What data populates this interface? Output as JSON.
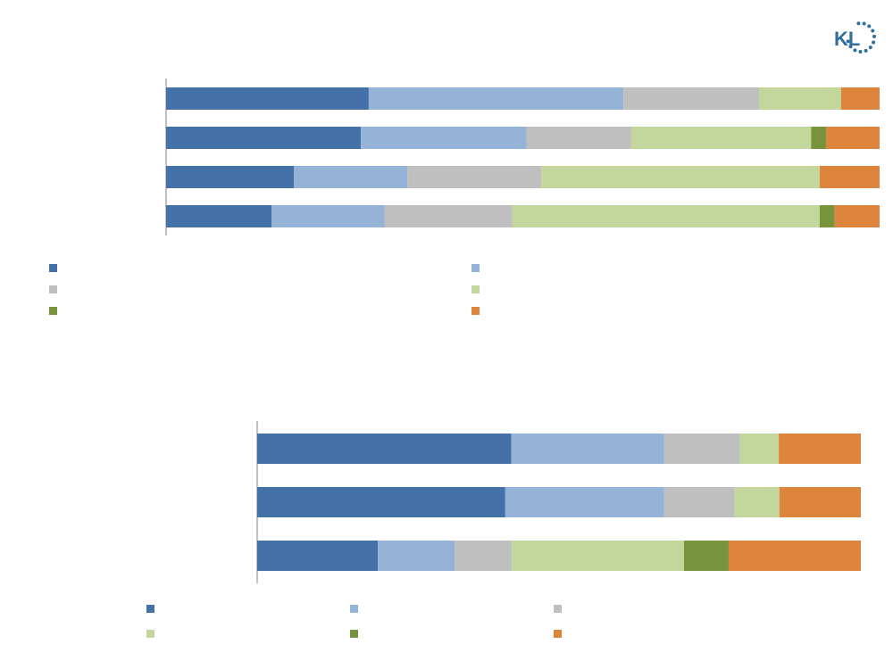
{
  "logo": {
    "text": "KL",
    "color": "#2e6f9e"
  },
  "colors": [
    "#4472a8",
    "#95b3d7",
    "#bfbfbf",
    "#c3d69b",
    "#77933c",
    "#dd843d"
  ],
  "chart_data": [
    {
      "type": "bar",
      "orientation": "horizontal",
      "stacked": true,
      "normalized": true,
      "title": "",
      "xlabel": "",
      "ylabel": "",
      "categories": [
        "",
        "",
        "",
        ""
      ],
      "series": [
        {
          "values": [
            28.4,
            27.3,
            17.9,
            14.8
          ]
        },
        {
          "values": [
            35.7,
            23.2,
            15.9,
            15.8
          ]
        },
        {
          "values": [
            19.0,
            14.7,
            18.8,
            17.9
          ]
        },
        {
          "values": [
            11.5,
            25.2,
            39.0,
            43.1
          ]
        },
        {
          "values": [
            0.0,
            2.1,
            0.0,
            2.1
          ]
        },
        {
          "values": [
            5.4,
            7.5,
            8.4,
            6.3
          ]
        }
      ],
      "legend": {
        "position": "bottom",
        "columns": 2
      },
      "grid": false
    },
    {
      "type": "bar",
      "orientation": "horizontal",
      "stacked": true,
      "normalized": true,
      "title": "",
      "xlabel": "",
      "ylabel": "",
      "categories": [
        "",
        "",
        ""
      ],
      "series": [
        {
          "values": [
            42.1,
            41.1,
            20.0
          ]
        },
        {
          "values": [
            25.3,
            26.3,
            12.7
          ]
        },
        {
          "values": [
            12.6,
            11.7,
            9.5
          ]
        },
        {
          "values": [
            6.4,
            7.4,
            28.5
          ]
        },
        {
          "values": [
            0.0,
            0.0,
            7.4
          ]
        },
        {
          "values": [
            13.6,
            13.5,
            21.9
          ]
        }
      ],
      "legend": {
        "position": "bottom",
        "columns": 3
      },
      "grid": false
    }
  ]
}
